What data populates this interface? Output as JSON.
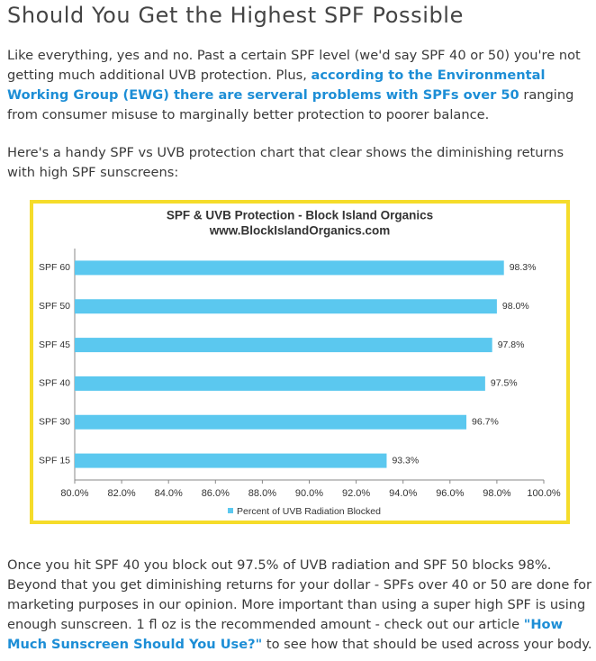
{
  "title": "Should You Get the Highest SPF Possible",
  "paragraphs": [
    [
      {
        "text": "Like everything, yes and no. Past a certain SPF level (we'd say SPF 40 or 50) you're not getting much additional UVB protection. Plus, "
      },
      {
        "link": "according to the Environmental Working Group (EWG) there are serveral problems with SPFs over 50"
      },
      {
        "text": " ranging from consumer misuse to marginally better protection to poorer balance."
      }
    ],
    [
      {
        "text": "Here's a handy SPF vs UVB protection chart that clear shows the diminishing returns with high SPF sunscreens:"
      }
    ]
  ],
  "chart_data": {
    "type": "bar",
    "orientation": "horizontal",
    "title": "SPF & UVB Protection - Block Island Organics",
    "subtitle": "www.BlockIslandOrganics.com",
    "categories": [
      "SPF 60",
      "SPF 50",
      "SPF 45",
      "SPF 40",
      "SPF 30",
      "SPF 15"
    ],
    "series": [
      {
        "name": "Percent of UVB Radiation Blocked",
        "color": "#5bc8ef",
        "values": [
          98.3,
          98.0,
          97.8,
          97.5,
          96.7,
          93.3
        ],
        "value_labels": [
          "98.3%",
          "98.0%",
          "97.8%",
          "97.5%",
          "96.7%",
          "93.3%"
        ]
      }
    ],
    "xlim": [
      80,
      100
    ],
    "xticks": [
      {
        "value": 80,
        "label": "80.0%"
      },
      {
        "value": 82,
        "label": "82.0%"
      },
      {
        "value": 84,
        "label": "84.0%"
      },
      {
        "value": 86,
        "label": "86.0%"
      },
      {
        "value": 88,
        "label": "88.0%"
      },
      {
        "value": 90,
        "label": "90.0%"
      },
      {
        "value": 92,
        "label": "92.0%"
      },
      {
        "value": 94,
        "label": "94.0%"
      },
      {
        "value": 96,
        "label": "96.0%"
      },
      {
        "value": 98,
        "label": "98.0%"
      },
      {
        "value": 100,
        "label": "100.0%"
      }
    ],
    "legend": "bottom"
  },
  "closing": [
    {
      "text": "Once you hit SPF 40 you block out 97.5% of UVB radiation and SPF 50 blocks 98%. Beyond that you get diminishing returns for your dollar - SPFs over 40 or 50 are done for marketing purposes in our opinion. More important than using a super high SPF is using enough sunscreen. 1 fl oz is the recommended amount - check out our article "
    },
    {
      "link": "\"How Much Sunscreen Should You Use?\""
    },
    {
      "text": " to see how that should be used across your body."
    }
  ]
}
